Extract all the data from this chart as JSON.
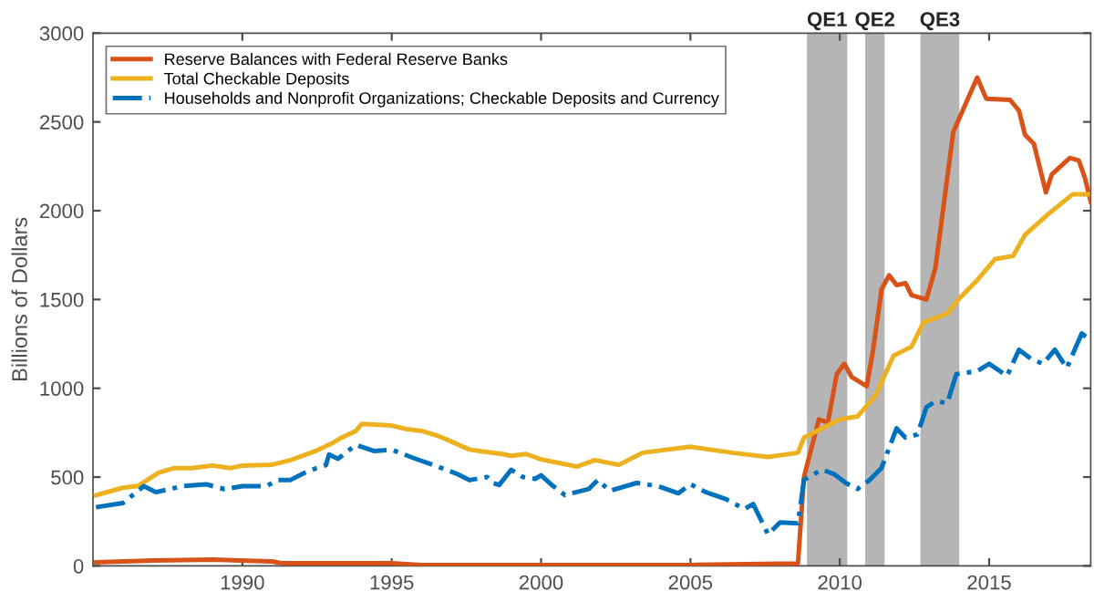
{
  "chart_data": {
    "type": "line",
    "ylabel": "Billions of Dollars",
    "xlim": [
      1985,
      2018.4
    ],
    "xticks": [
      1990,
      1995,
      2000,
      2005,
      2010,
      2015
    ],
    "ylim": [
      0,
      3000
    ],
    "yticks": [
      0,
      500,
      1000,
      1500,
      2000,
      2500,
      3000
    ],
    "grid": false,
    "legend": "top left",
    "bands": [
      {
        "axis": "x",
        "from": 2008.9,
        "to": 2010.25,
        "label": "QE1",
        "color": "#b5b5b5"
      },
      {
        "axis": "x",
        "from": 2010.85,
        "to": 2011.5,
        "label": "QE2",
        "color": "#b5b5b5"
      },
      {
        "axis": "x",
        "from": 2012.7,
        "to": 2014.0,
        "label": "QE3",
        "color": "#b5b5b5"
      }
    ],
    "series": [
      {
        "name": "Reserve Balances with Federal Reserve Banks",
        "color": "#d95319",
        "line_style": "solid",
        "x": [
          1985.1,
          1987,
          1989,
          1991,
          1991.3,
          1995,
          1996,
          2000,
          2005,
          2008.6,
          2008.8,
          2009.3,
          2009.6,
          2009.9,
          2010.15,
          2010.4,
          2010.9,
          2011.1,
          2011.4,
          2011.65,
          2011.9,
          2012.2,
          2012.4,
          2012.9,
          2013.2,
          2013.8,
          2014.6,
          2014.9,
          2015.7,
          2016,
          2016.2,
          2016.5,
          2016.9,
          2017.1,
          2017.7,
          2018,
          2018.2,
          2018.4
        ],
        "values": [
          20,
          30,
          35,
          25,
          15,
          15,
          5,
          5,
          5,
          14,
          500,
          825,
          808,
          1080,
          1138,
          1063,
          1012,
          1200,
          1558,
          1636,
          1581,
          1592,
          1524,
          1500,
          1677,
          2444,
          2750,
          2631,
          2624,
          2563,
          2427,
          2376,
          2103,
          2205,
          2297,
          2283,
          2188,
          2052
        ]
      },
      {
        "name": "Total Checkable Deposits",
        "color": "#edb120",
        "line_style": "solid",
        "x": [
          1985.1,
          1986,
          1986.5,
          1987.2,
          1987.7,
          1988.3,
          1989,
          1989.6,
          1990,
          1991,
          1991.6,
          1992.5,
          1993,
          1993.3,
          1993.8,
          1994,
          1995,
          1995.5,
          1996,
          1996.5,
          1997,
          1997.6,
          1998,
          1998.7,
          1999,
          1999.5,
          2000,
          2000.4,
          2001.2,
          2001.8,
          2002.6,
          2003.4,
          2005,
          2006.4,
          2007.6,
          2008.6,
          2008.8,
          2009.4,
          2010,
          2010.6,
          2011.2,
          2011.8,
          2012.4,
          2012.8,
          2013.6,
          2014,
          2014.6,
          2015.2,
          2015.8,
          2016.2,
          2017,
          2017.8,
          2018.3
        ],
        "values": [
          398,
          440,
          450,
          525,
          550,
          550,
          565,
          550,
          565,
          570,
          595,
          650,
          690,
          720,
          760,
          800,
          790,
          770,
          760,
          735,
          700,
          655,
          645,
          630,
          620,
          630,
          600,
          586,
          559,
          596,
          569,
          637,
          671,
          637,
          613,
          637,
          722,
          774,
          825,
          842,
          961,
          1183,
          1234,
          1370,
          1421,
          1506,
          1609,
          1728,
          1745,
          1864,
          1984,
          2093,
          2093
        ]
      },
      {
        "name": "Households and Nonprofit Organizations; Checkable Deposits and Currency",
        "color": "#0072bd",
        "line_style": "dashdot",
        "x": [
          1985.1,
          1986,
          1986.7,
          1987.1,
          1988,
          1988.8,
          1989.4,
          1990,
          1990.8,
          1991.2,
          1991.6,
          1992.2,
          1992.8,
          1992.9,
          1993.2,
          1993.8,
          1994.4,
          1995,
          1995.8,
          1996.4,
          1997.2,
          1997.6,
          1998.2,
          1998.4,
          1998.6,
          1999,
          1999.4,
          1999.8,
          2000,
          2000.4,
          2000.8,
          2001.6,
          2001.9,
          2002.3,
          2003.2,
          2003.9,
          2004.6,
          2005,
          2005.5,
          2006.2,
          2006.8,
          2007.1,
          2007.6,
          2008,
          2008.6,
          2008.8,
          2009.4,
          2009.8,
          2010.2,
          2010.6,
          2011,
          2011.4,
          2011.9,
          2012.2,
          2012.6,
          2012.9,
          2013.2,
          2013.6,
          2013.9,
          2014.6,
          2015,
          2015.6,
          2016,
          2016.4,
          2016.8,
          2017.2,
          2017.6,
          2018.1,
          2018.4
        ],
        "values": [
          330,
          354,
          449,
          415,
          449,
          459,
          432,
          449,
          449,
          483,
          483,
          534,
          568,
          627,
          603,
          681,
          647,
          654,
          603,
          568,
          517,
          483,
          500,
          466,
          456,
          541,
          500,
          490,
          510,
          450,
          399,
          433,
          484,
          423,
          467,
          450,
          409,
          460,
          416,
          375,
          320,
          348,
          177,
          245,
          239,
          484,
          542,
          518,
          467,
          433,
          484,
          552,
          774,
          722,
          740,
          893,
          927,
          917,
          1080,
          1097,
          1138,
          1070,
          1217,
          1166,
          1138,
          1217,
          1114,
          1309,
          1268
        ]
      }
    ]
  }
}
